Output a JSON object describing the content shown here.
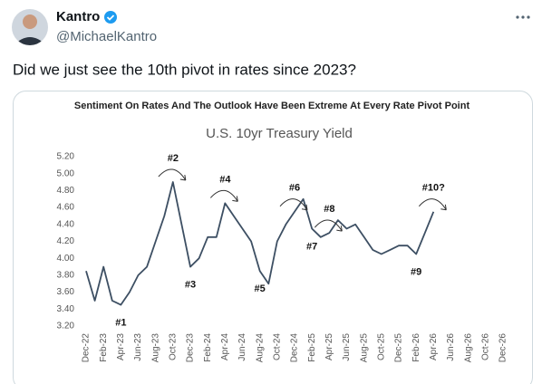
{
  "tweet": {
    "name": "Kantro",
    "handle": "@MichaelKantro",
    "text": "Did we just see the 10th pivot in rates since 2023?"
  },
  "chart_data": {
    "type": "line",
    "title": "Sentiment On Rates And The Outlook Have Been Extreme At Every Rate Pivot Point",
    "subtitle": "U.S. 10yr Treasury Yield",
    "categories": [
      "Dec-22",
      null,
      "Feb-23",
      null,
      "Apr-23",
      null,
      "Jun-23",
      null,
      "Aug-23",
      null,
      "Oct-23",
      null,
      "Dec-23",
      null,
      "Feb-24",
      null,
      "Apr-24",
      null,
      "Jun-24",
      null,
      "Aug-24",
      null,
      "Oct-24",
      null,
      "Dec-24",
      null,
      "Feb-25",
      null,
      "Apr-25",
      null,
      "Jun-25",
      null,
      "Aug-25",
      null,
      "Oct-25",
      null,
      "Dec-25",
      null,
      "Feb-26",
      null,
      "Apr-26",
      null,
      "Jun-26",
      null,
      "Aug-26",
      null,
      "Oct-26",
      null,
      "Dec-26"
    ],
    "series": [
      {
        "name": "U.S. 10yr Treasury Yield",
        "color": "#3d4f63",
        "values": [
          3.85,
          3.5,
          3.9,
          3.5,
          3.45,
          3.6,
          3.8,
          3.9,
          4.2,
          4.5,
          4.9,
          4.4,
          3.9,
          4.0,
          4.25,
          4.25,
          4.65,
          4.5,
          4.35,
          4.2,
          3.85,
          3.7,
          4.2,
          4.4,
          4.55,
          4.7,
          4.35,
          4.25,
          4.3,
          4.45,
          4.35,
          4.4,
          4.25,
          4.1,
          4.05,
          4.1,
          4.15,
          4.15,
          4.05,
          4.3,
          4.55,
          null,
          null,
          null,
          null,
          null,
          null,
          null,
          null
        ]
      }
    ],
    "ylim": [
      3.2,
      5.2
    ],
    "yticks": [
      {
        "value": 3.2,
        "label": "3.20"
      },
      {
        "value": 3.4,
        "label": "3.40"
      },
      {
        "value": 3.6,
        "label": "3.60"
      },
      {
        "value": 3.8,
        "label": "3.80"
      },
      {
        "value": 4.0,
        "label": "4.00"
      },
      {
        "value": 4.2,
        "label": "4.20"
      },
      {
        "value": 4.4,
        "label": "4.40"
      },
      {
        "value": 4.6,
        "label": "4.60"
      },
      {
        "value": 4.8,
        "label": "4.80"
      },
      {
        "value": 5.0,
        "label": "5.00"
      },
      {
        "value": 5.2,
        "label": "5.20"
      }
    ],
    "grid": false,
    "annotations": [
      {
        "text": "#1",
        "x": "Apr-23"
      },
      {
        "text": "#2",
        "x": "Oct-23"
      },
      {
        "text": "#3",
        "x": "Dec-23"
      },
      {
        "text": "#4",
        "x": "Apr-24"
      },
      {
        "text": "#5",
        "x": "Aug-24"
      },
      {
        "text": "#6",
        "x": "Dec-24"
      },
      {
        "text": "#7",
        "x": "Feb-25"
      },
      {
        "text": "#8",
        "x": "Apr-25"
      },
      {
        "text": "#9",
        "x": "Feb-26"
      },
      {
        "text": "#10?",
        "x": "Apr-26"
      }
    ]
  }
}
